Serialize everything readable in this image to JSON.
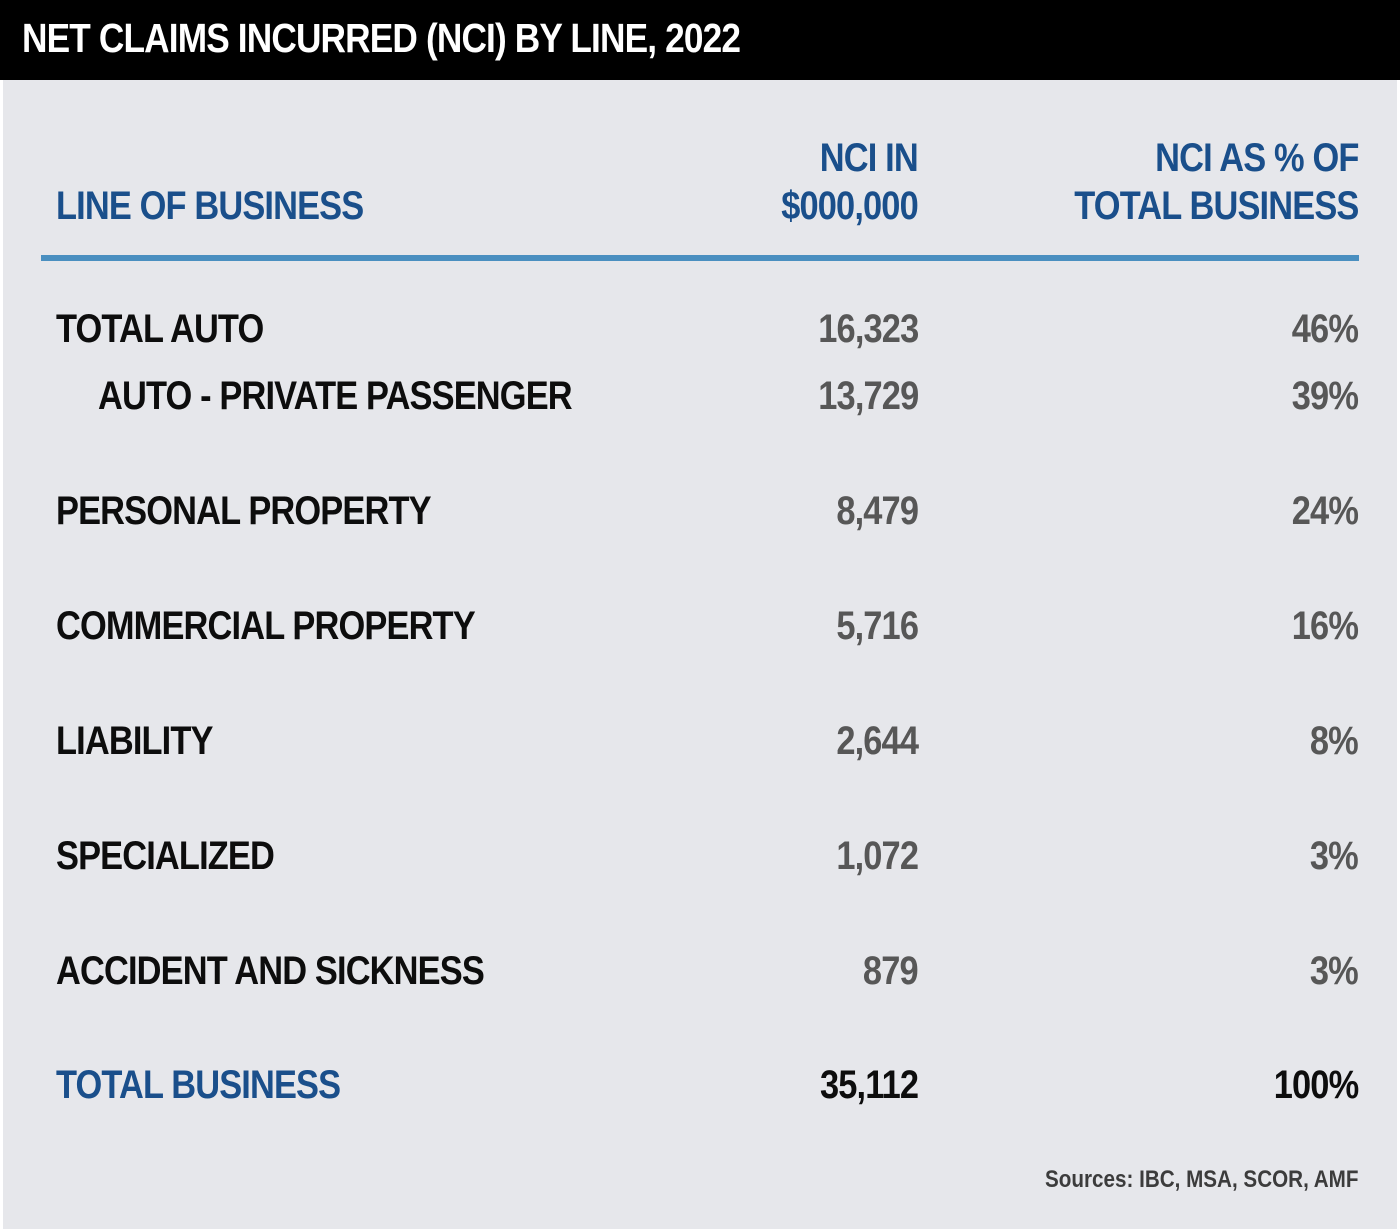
{
  "chart_data": {
    "type": "table",
    "title": "NET CLAIMS INCURRED (NCI) BY LINE, 2022",
    "columns": {
      "line": "LINE OF BUSINESS",
      "nci": [
        "NCI IN",
        "$000,000"
      ],
      "pct": [
        "NCI AS % OF",
        "TOTAL BUSINESS"
      ]
    },
    "rows": [
      {
        "label": "TOTAL AUTO",
        "value": "16,323",
        "pct": "46%"
      },
      {
        "label": "AUTO - PRIVATE PASSENGER",
        "value": "13,729",
        "pct": "39%"
      },
      {
        "label": "PERSONAL PROPERTY",
        "value": "8,479",
        "pct": "24%"
      },
      {
        "label": "COMMERCIAL PROPERTY",
        "value": "5,716",
        "pct": "16%"
      },
      {
        "label": "LIABILITY",
        "value": "2,644",
        "pct": "8%"
      },
      {
        "label": "SPECIALIZED",
        "value": "1,072",
        "pct": "3%"
      },
      {
        "label": "ACCIDENT AND SICKNESS",
        "value": "879",
        "pct": "3%"
      },
      {
        "label": "TOTAL BUSINESS",
        "value": "35,112",
        "pct": "100%"
      }
    ],
    "source": "Sources: IBC, MSA, SCOR, AMF"
  },
  "colors": {
    "title_bg": "#000000",
    "panel_bg": "#e6e7eb",
    "accent_blue": "#1a4f8b",
    "rule_blue": "#4a8fc0",
    "value_gray": "#575757"
  }
}
